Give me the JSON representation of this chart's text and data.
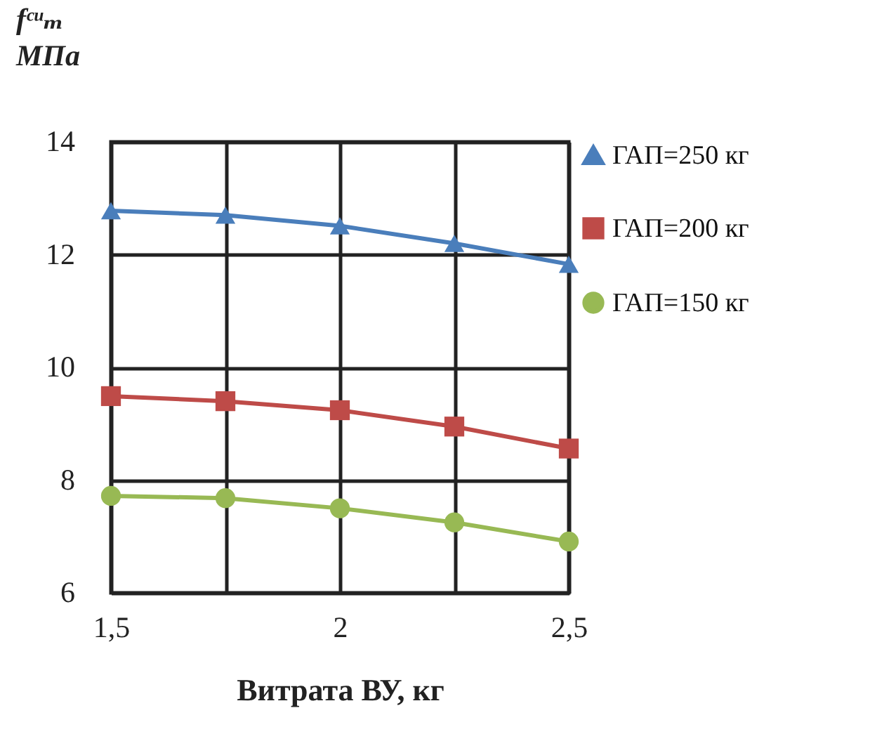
{
  "chart_data": {
    "type": "line",
    "xlabel": "Витрата ВУ, кг",
    "ylabel": "fᶜᵘₘ\nМПа",
    "x": [
      1.5,
      1.75,
      2,
      2.25,
      2.5
    ],
    "series": [
      {
        "name": "ГАП=250 кг",
        "color": "#4a7ebb",
        "marker": "triangle",
        "values": [
          12.78,
          12.7,
          12.51,
          12.2,
          11.83
        ]
      },
      {
        "name": "ГАП=200 кг",
        "color": "#be4b48",
        "marker": "square",
        "values": [
          9.49,
          9.4,
          9.24,
          8.95,
          8.56
        ]
      },
      {
        "name": "ГАП=150 кг",
        "color": "#98b954",
        "marker": "circle",
        "values": [
          7.72,
          7.68,
          7.5,
          7.25,
          6.91
        ]
      }
    ],
    "xlim": [
      1.5,
      2.5
    ],
    "xticks": [
      {
        "value": 1.5,
        "label": "1,5"
      },
      {
        "value": 1.75,
        "label": null
      },
      2,
      {
        "value": 2.25,
        "label": null
      },
      {
        "value": 2.5,
        "label": "2,5"
      }
    ],
    "ylim": [
      6,
      14
    ],
    "yticks": [
      6,
      8,
      10,
      12,
      14
    ],
    "grid": true,
    "legend": "right",
    "line_style": "solid"
  }
}
